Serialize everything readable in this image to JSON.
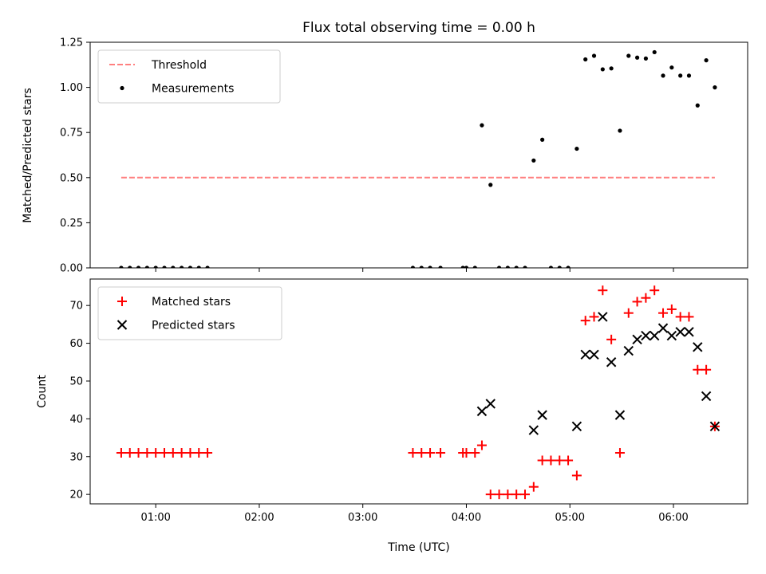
{
  "chart_data": {
    "type": "scatter",
    "title": "Flux total observing time = 0.00 h",
    "xlabel": "Time (UTC)",
    "x_unit": "hours UTC",
    "xlim": [
      "00:22",
      "06:43"
    ],
    "xticks": [
      {
        "value": 1,
        "label": "01:00"
      },
      {
        "value": 2,
        "label": "02:00"
      },
      {
        "value": 3,
        "label": "03:00"
      },
      {
        "value": 4,
        "label": "04:00"
      },
      {
        "value": 5,
        "label": "05:00"
      },
      {
        "value": 6,
        "label": "06:00"
      }
    ],
    "panels": [
      {
        "name": "ratio",
        "ylabel": "Matched/Predicted stars",
        "ylim": [
          0,
          1.25
        ],
        "yticks": [
          {
            "value": 0,
            "label": "0.00"
          },
          {
            "value": 0.25,
            "label": "0.25"
          },
          {
            "value": 0.5,
            "label": "0.50"
          },
          {
            "value": 0.75,
            "label": "0.75"
          },
          {
            "value": 1.0,
            "label": "1.00"
          },
          {
            "value": 1.25,
            "label": "1.25"
          }
        ],
        "legend_position": "upper-left",
        "threshold": {
          "name": "Threshold",
          "y": 0.5,
          "x_start": "00:40",
          "x_end": "06:24",
          "color": "#ff7f7f",
          "style": "dashed"
        },
        "series": [
          {
            "name": "Measurements",
            "marker": "dot",
            "color": "#000000",
            "x": [
              "00:40",
              "00:45",
              "00:50",
              "00:55",
              "01:00",
              "01:05",
              "01:10",
              "01:15",
              "01:20",
              "01:25",
              "01:30",
              "03:29",
              "03:34",
              "03:39",
              "03:45",
              "03:58",
              "04:00",
              "04:05",
              "04:09",
              "04:14",
              "04:19",
              "04:24",
              "04:29",
              "04:34",
              "04:39",
              "04:44",
              "04:49",
              "04:54",
              "04:59",
              "05:04",
              "05:09",
              "05:14",
              "05:19",
              "05:24",
              "05:29",
              "05:34",
              "05:39",
              "05:44",
              "05:49",
              "05:54",
              "05:59",
              "06:04",
              "06:09",
              "06:14",
              "06:19",
              "06:24"
            ],
            "y": [
              0,
              0,
              0,
              0,
              0,
              0,
              0,
              0,
              0,
              0,
              0,
              0,
              0,
              0,
              0,
              0,
              0,
              0,
              0.79,
              0.46,
              0,
              0,
              0,
              0,
              0.595,
              0.71,
              0,
              0,
              0,
              0.66,
              1.155,
              1.175,
              1.1,
              1.105,
              0.76,
              1.175,
              1.165,
              1.16,
              1.195,
              1.065,
              1.11,
              1.065,
              1.065,
              0.9,
              1.15,
              1.0
            ]
          }
        ]
      },
      {
        "name": "counts",
        "ylabel": "Count",
        "ylim": [
          17.5,
          77
        ],
        "yticks": [
          {
            "value": 20,
            "label": "20"
          },
          {
            "value": 30,
            "label": "30"
          },
          {
            "value": 40,
            "label": "40"
          },
          {
            "value": 50,
            "label": "50"
          },
          {
            "value": 60,
            "label": "60"
          },
          {
            "value": 70,
            "label": "70"
          }
        ],
        "legend_position": "upper-left",
        "series": [
          {
            "name": "Matched stars",
            "marker": "plus",
            "color": "#ff0000",
            "x": [
              "00:40",
              "00:45",
              "00:50",
              "00:55",
              "01:00",
              "01:05",
              "01:10",
              "01:15",
              "01:20",
              "01:25",
              "01:30",
              "03:29",
              "03:34",
              "03:39",
              "03:45",
              "03:58",
              "04:00",
              "04:05",
              "04:09",
              "04:14",
              "04:19",
              "04:24",
              "04:29",
              "04:34",
              "04:39",
              "04:44",
              "04:49",
              "04:54",
              "04:59",
              "05:04",
              "05:09",
              "05:14",
              "05:19",
              "05:24",
              "05:29",
              "05:34",
              "05:39",
              "05:44",
              "05:49",
              "05:54",
              "05:59",
              "06:04",
              "06:09",
              "06:14",
              "06:19",
              "06:24"
            ],
            "y": [
              31,
              31,
              31,
              31,
              31,
              31,
              31,
              31,
              31,
              31,
              31,
              31,
              31,
              31,
              31,
              31,
              31,
              31,
              33,
              20,
              20,
              20,
              20,
              20,
              22,
              29,
              29,
              29,
              29,
              25,
              66,
              67,
              74,
              61,
              31,
              68,
              71,
              72,
              74,
              68,
              69,
              67,
              67,
              53,
              53,
              38
            ]
          },
          {
            "name": "Predicted stars",
            "marker": "x",
            "color": "#000000",
            "x": [
              "04:09",
              "04:14",
              "04:39",
              "04:44",
              "05:04",
              "05:09",
              "05:14",
              "05:19",
              "05:24",
              "05:29",
              "05:34",
              "05:39",
              "05:44",
              "05:49",
              "05:54",
              "05:59",
              "06:04",
              "06:09",
              "06:14",
              "06:19",
              "06:24"
            ],
            "y": [
              42,
              44,
              37,
              41,
              38,
              57,
              57,
              67,
              55,
              41,
              58,
              61,
              62,
              62,
              64,
              62,
              63,
              63,
              59,
              46,
              38
            ]
          }
        ]
      }
    ]
  }
}
